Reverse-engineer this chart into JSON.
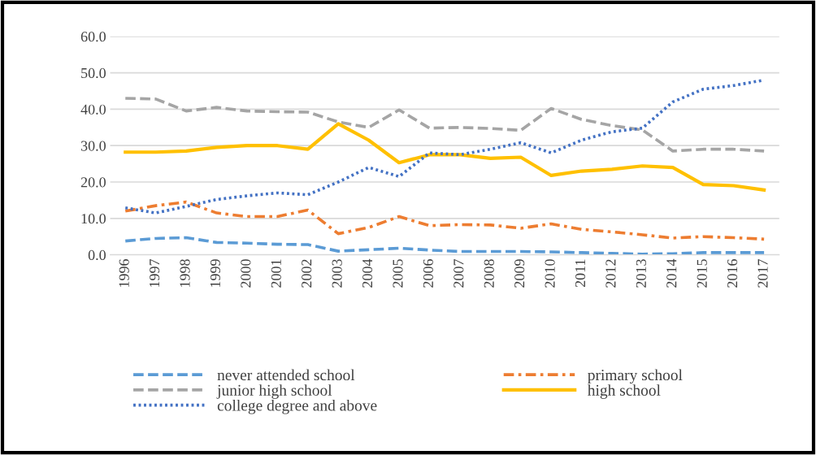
{
  "chart_data": {
    "type": "line",
    "categories": [
      "1996",
      "1997",
      "1998",
      "1999",
      "2000",
      "2001",
      "2002",
      "2003",
      "2004",
      "2005",
      "2006",
      "2007",
      "2008",
      "2009",
      "2010",
      "2011",
      "2012",
      "2013",
      "2014",
      "2015",
      "2016",
      "2017"
    ],
    "ylim": [
      0,
      60
    ],
    "yticks": [
      {
        "value": 0,
        "label": "0.0"
      },
      {
        "value": 10,
        "label": "10.0"
      },
      {
        "value": 20,
        "label": "20.0"
      },
      {
        "value": 30,
        "label": "30.0"
      },
      {
        "value": 40,
        "label": "40.0"
      },
      {
        "value": 50,
        "label": "50.0"
      },
      {
        "value": 60,
        "label": "60.0"
      }
    ],
    "grid": "y",
    "legend": "bottom",
    "marker": "none",
    "series": [
      {
        "name": "never attended school",
        "color": "#5b9bd5",
        "line_style": "dashed",
        "values": [
          3.8,
          4.5,
          4.7,
          3.4,
          3.2,
          2.9,
          2.8,
          1.0,
          1.4,
          1.8,
          1.3,
          0.9,
          0.9,
          0.9,
          0.8,
          0.6,
          0.4,
          0.2,
          0.3,
          0.6,
          0.6,
          0.6
        ]
      },
      {
        "name": "primary school",
        "color": "#ed7d31",
        "line_style": "dashdot",
        "values": [
          12.0,
          13.5,
          14.5,
          11.5,
          10.5,
          10.5,
          12.3,
          5.8,
          7.5,
          10.5,
          8.0,
          8.3,
          8.2,
          7.3,
          8.5,
          7.0,
          6.3,
          5.5,
          4.6,
          5.0,
          4.7,
          4.3
        ]
      },
      {
        "name": "junior high school",
        "color": "#a5a5a5",
        "line_style": "dashed",
        "values": [
          43.0,
          42.8,
          39.5,
          40.5,
          39.5,
          39.3,
          39.2,
          36.5,
          35.0,
          39.8,
          34.8,
          35.0,
          34.7,
          34.2,
          40.2,
          37.2,
          35.5,
          34.3,
          28.5,
          29.0,
          29.0,
          28.5
        ]
      },
      {
        "name": "high school",
        "color": "#ffc000",
        "line_style": "solid",
        "values": [
          28.2,
          28.2,
          28.5,
          29.5,
          30.0,
          30.0,
          29.0,
          36.0,
          31.5,
          25.3,
          27.5,
          27.5,
          26.5,
          26.8,
          21.8,
          23.0,
          23.5,
          24.4,
          24.0,
          19.3,
          19.0,
          17.8
        ]
      },
      {
        "name": "college degree and above",
        "color": "#4472c4",
        "line_style": "dotted",
        "values": [
          12.9,
          11.5,
          13.3,
          15.2,
          16.2,
          17.0,
          16.5,
          20.0,
          24.0,
          21.5,
          28.0,
          27.5,
          29.0,
          30.8,
          28.0,
          31.5,
          33.8,
          34.8,
          42.0,
          45.5,
          46.5,
          48.0
        ]
      }
    ]
  }
}
